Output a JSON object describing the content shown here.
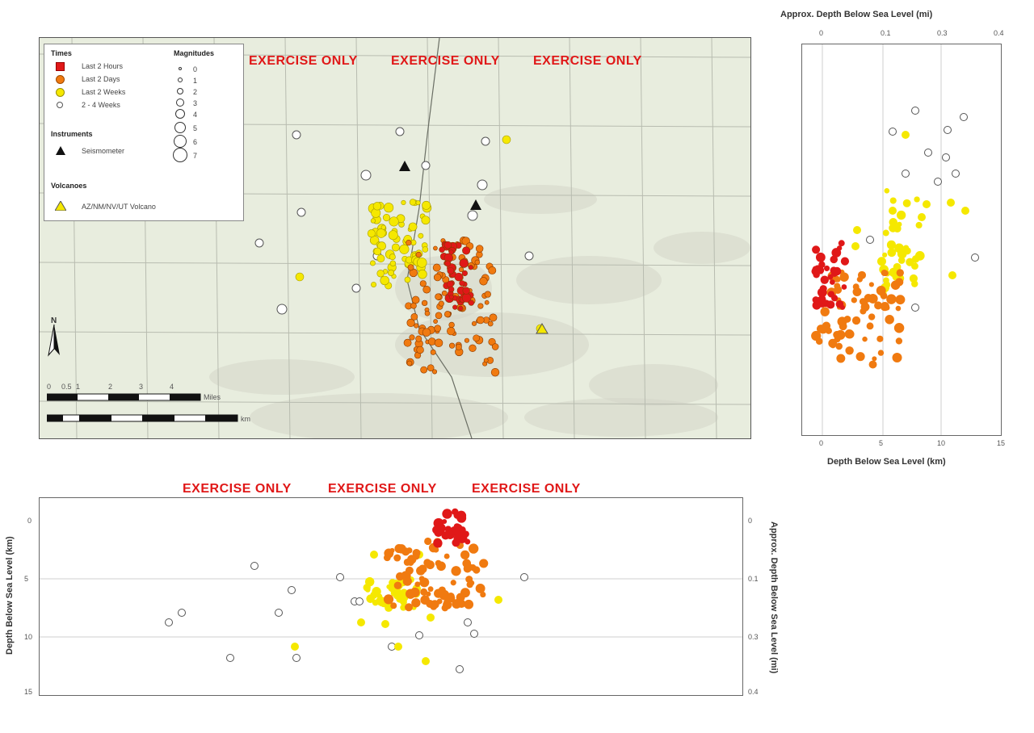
{
  "map": {
    "exercise_labels": [
      "EXERCISE ONLY",
      "EXERCISE ONLY",
      "EXERCISE ONLY"
    ],
    "colors": {
      "last_2_hours": "#e01818",
      "last_2_days": "#f07a10",
      "last_2_weeks": "#f5e800",
      "older": "#ffffff",
      "background": "#e8edde",
      "grid": "#b8bcb0"
    },
    "legend": {
      "times_title": "Times",
      "times": [
        {
          "label": "Last 2 Hours",
          "color": "#e01818"
        },
        {
          "label": "Last 2 Days",
          "color": "#f07a10"
        },
        {
          "label": "Last 2 Weeks",
          "color": "#f5e800"
        },
        {
          "label": "2 - 4 Weeks",
          "color": "#ffffff"
        }
      ],
      "magnitudes_title": "Magnitudes",
      "magnitudes": [
        "0",
        "1",
        "2",
        "3",
        "4",
        "5",
        "6",
        "7"
      ],
      "instruments_title": "Instruments",
      "instruments": [
        {
          "label": "Seismometer",
          "icon": "triangle-black-icon"
        }
      ],
      "volcanoes_title": "Volcanoes",
      "volcanoes": [
        {
          "label": "AZ/NM/NV/UT Volcano",
          "icon": "triangle-yellow-icon"
        }
      ]
    },
    "north_label": "N",
    "scale_labels": {
      "top": [
        "0",
        "0.5",
        "1",
        "2",
        "3",
        "4"
      ],
      "top_unit": "Miles",
      "bottom_unit": "km"
    }
  },
  "depth_panel": {
    "top_axis_label": "Approx. Depth Below Sea Level (mi)",
    "top_ticks": [
      "0",
      "0.1",
      "0.3",
      "0.4"
    ],
    "bottom_axis_label": "Depth Below Sea Level (km)",
    "bottom_ticks": [
      "0",
      "5",
      "10",
      "15"
    ]
  },
  "cross_section": {
    "exercise_labels": [
      "EXERCISE ONLY",
      "EXERCISE ONLY",
      "EXERCISE ONLY"
    ],
    "left_axis_label": "Depth Below Sea Level (km)",
    "left_ticks": [
      "0",
      "5",
      "10",
      "15"
    ],
    "right_axis_label": "Approx. Depth Below Sea Level (mi)",
    "right_ticks": [
      "0",
      "0.1",
      "0.3",
      "0.4"
    ]
  }
}
